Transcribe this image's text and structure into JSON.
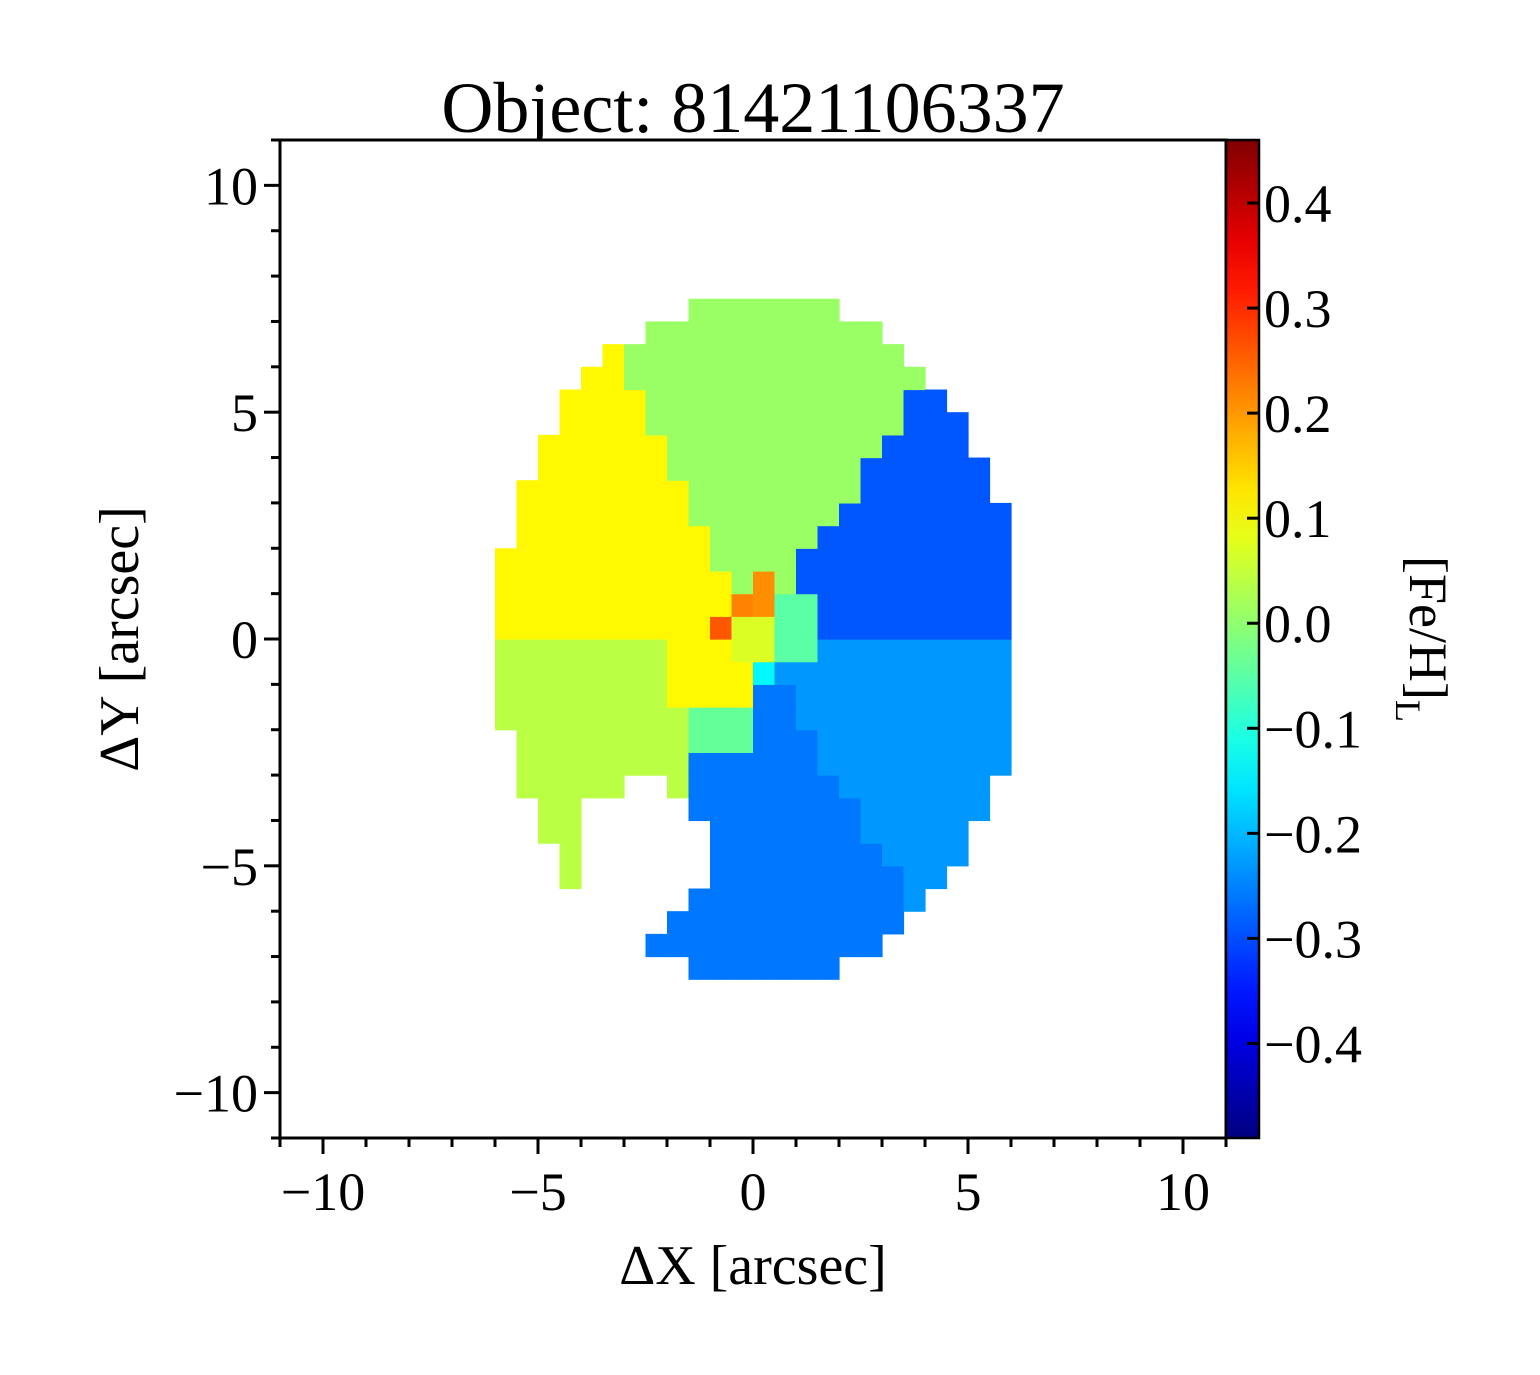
{
  "chart_data": {
    "type": "heatmap",
    "title": "Object: 81421106337",
    "xlabel": "ΔX [arcsec]",
    "ylabel": "ΔY [arcsec]",
    "colorbar_label": "[Fe/H]",
    "colorbar_label_subscript": "L",
    "xlim": [
      -11,
      11
    ],
    "ylim": [
      -11,
      11
    ],
    "x_ticks": [
      {
        "value": -10,
        "label": "−10"
      },
      {
        "value": -5,
        "label": "−5"
      },
      {
        "value": 0,
        "label": "0"
      },
      {
        "value": 5,
        "label": "5"
      },
      {
        "value": 10,
        "label": "10"
      }
    ],
    "y_ticks": [
      {
        "value": 10,
        "label": "10"
      },
      {
        "value": 5,
        "label": "5"
      },
      {
        "value": 0,
        "label": "0"
      },
      {
        "value": -5,
        "label": "−5"
      },
      {
        "value": -10,
        "label": "−10"
      }
    ],
    "colorbar": {
      "colormap": "jet",
      "range": [
        -0.49,
        0.46
      ],
      "ticks": [
        {
          "value": 0.4,
          "label": "0.4"
        },
        {
          "value": 0.3,
          "label": "0.3"
        },
        {
          "value": 0.2,
          "label": "0.2"
        },
        {
          "value": 0.1,
          "label": "0.1"
        },
        {
          "value": 0.0,
          "label": "0.0"
        },
        {
          "value": -0.1,
          "label": "−0.1"
        },
        {
          "value": -0.2,
          "label": "−0.2"
        },
        {
          "value": -0.3,
          "label": "−0.3"
        },
        {
          "value": -0.4,
          "label": "−0.4"
        }
      ]
    },
    "footprint": {
      "center": [
        0.1,
        0.0
      ],
      "semi_axes": [
        6.1,
        7.6
      ],
      "masked_hole": {
        "center": [
          -2.6,
          -4.8
        ],
        "radius": 1.6
      }
    },
    "bins": [
      {
        "region": "north-sector",
        "feh": 0.01
      },
      {
        "region": "north-west-sector",
        "feh": 0.11
      },
      {
        "region": "east-north-east-sector",
        "feh": -0.29
      },
      {
        "region": "south-east-sector",
        "feh": -0.23
      },
      {
        "region": "south-sector",
        "feh": -0.26
      },
      {
        "region": "west-sector",
        "feh": 0.04
      },
      {
        "region": "center-north-east",
        "feh": 0.21
      },
      {
        "region": "center-north",
        "feh": 0.22
      },
      {
        "region": "center-west",
        "feh": 0.26
      },
      {
        "region": "center-core",
        "feh": 0.07
      },
      {
        "region": "center-east",
        "feh": -0.05
      },
      {
        "region": "center-south-east",
        "feh": -0.14
      },
      {
        "region": "inner-south",
        "feh": -0.04
      },
      {
        "region": "inner-west",
        "feh": 0.11
      }
    ]
  }
}
